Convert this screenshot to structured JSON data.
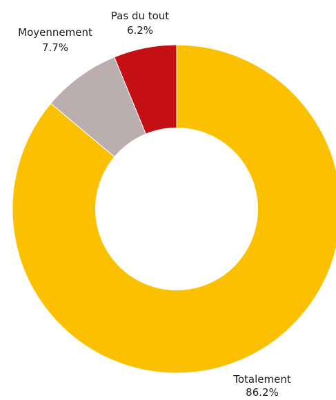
{
  "chart_data": {
    "type": "pie",
    "variant": "donut",
    "title": "",
    "start": "12 o'clock, clockwise",
    "slices": [
      {
        "label": "Totalement",
        "value": 86.2,
        "value_label": "86.2%",
        "color": "#FBC101"
      },
      {
        "label": "Moyennement",
        "value": 7.7,
        "value_label": "7.7%",
        "color": "#BAAEAE"
      },
      {
        "label": "Pas du tout",
        "value": 6.2,
        "value_label": "6.2%",
        "color": "#C41015"
      }
    ],
    "legend": "none",
    "data_labels": "outside, name above percentage"
  }
}
